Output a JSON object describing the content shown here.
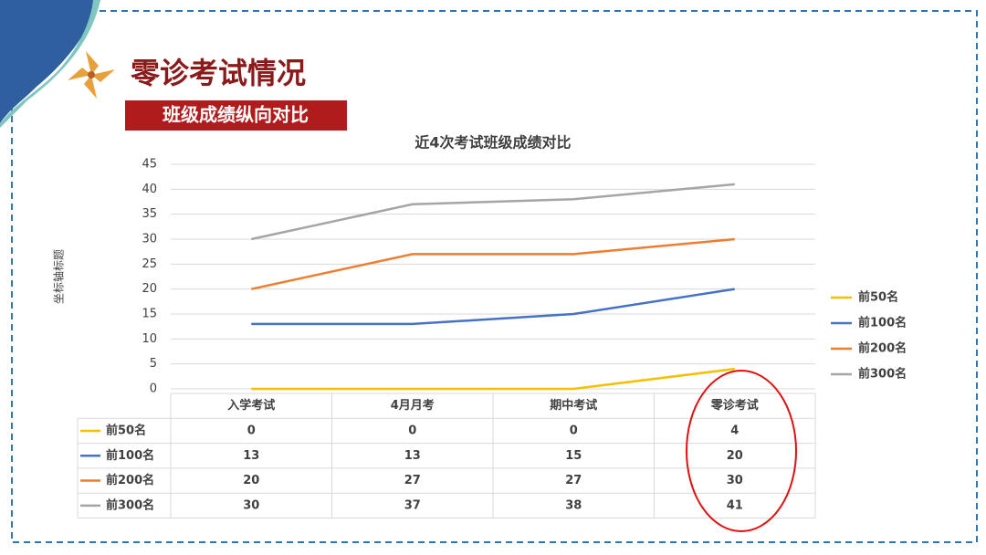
{
  "header": {
    "title": "零诊考试情况",
    "subtitle": "班级成绩纵向对比"
  },
  "chart_data": {
    "type": "line",
    "title": "近4次考试班级成绩对比",
    "y_label": "坐标轴标题",
    "categories": [
      "入学考试",
      "4月月考",
      "期中考试",
      "零诊考试"
    ],
    "series": [
      {
        "name": "前50名",
        "color": "#f5c000",
        "values": [
          0,
          0,
          0,
          4
        ]
      },
      {
        "name": "前100名",
        "color": "#4472c4",
        "values": [
          13,
          13,
          15,
          20
        ]
      },
      {
        "name": "前200名",
        "color": "#ed7d31",
        "values": [
          20,
          27,
          27,
          30
        ]
      },
      {
        "name": "前300名",
        "color": "#a5a5a5",
        "values": [
          30,
          37,
          38,
          41
        ]
      }
    ],
    "ylim": [
      0,
      45
    ],
    "yticks": [
      0,
      5,
      10,
      15,
      20,
      25,
      30,
      35,
      40,
      45
    ],
    "grid": true,
    "legend": "right",
    "data_table": true
  }
}
